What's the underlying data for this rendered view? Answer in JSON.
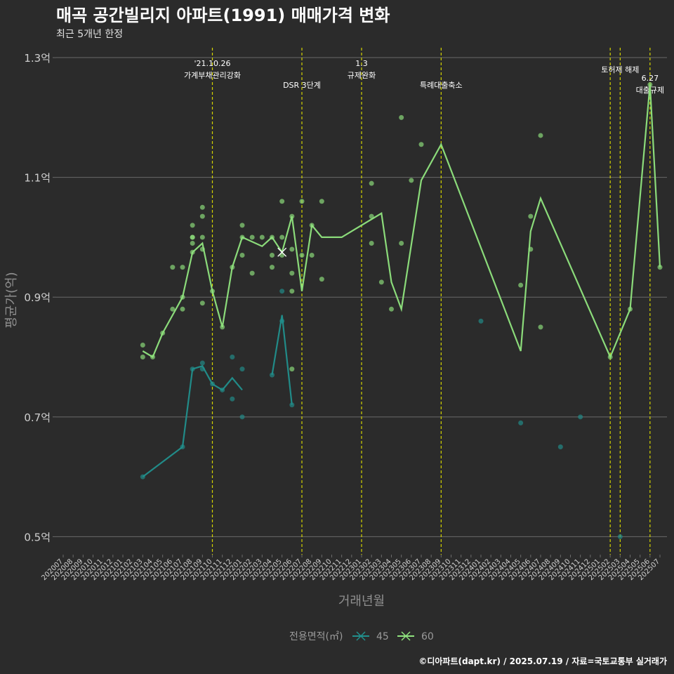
{
  "title": "매곡 공간빌리지 아파트(1991) 매매가격 변화",
  "subtitle": "최근 5개년 한정",
  "caption": "©디아파트(dapt.kr) / 2025.07.19 / 자료=국토교통부 실거래가",
  "colors": {
    "background": "#2b2b2b",
    "grid": "#6a6a6a",
    "axis_text": "#cfcfcf",
    "vline": "#d4d400",
    "s45": "#21908d",
    "s60": "#90e57e"
  },
  "chart_data": {
    "type": "line",
    "title": "매곡 공간빌리지 아파트(1991) 매매가격 변화",
    "xlabel": "거래년월",
    "ylabel": "평균가(억)",
    "ylim": [
      0.47,
      1.32
    ],
    "yticks": [
      0.5,
      0.7,
      0.9,
      1.1,
      1.3
    ],
    "ytick_labels": [
      "0.5억",
      "0.7억",
      "0.9억",
      "1.1억",
      "1.3억"
    ],
    "categories": [
      "202007",
      "202008",
      "202009",
      "202010",
      "202011",
      "202012",
      "202101",
      "202102",
      "202103",
      "202104",
      "202105",
      "202106",
      "202107",
      "202108",
      "202109",
      "202110",
      "202111",
      "202112",
      "202201",
      "202202",
      "202203",
      "202204",
      "202205",
      "202206",
      "202207",
      "202208",
      "202209",
      "202210",
      "202211",
      "202212",
      "202301",
      "202302",
      "202303",
      "202304",
      "202305",
      "202306",
      "202307",
      "202308",
      "202309",
      "202310",
      "202311",
      "202312",
      "202401",
      "202402",
      "202403",
      "202404",
      "202405",
      "202406",
      "202407",
      "202408",
      "202409",
      "202410",
      "202411",
      "202412",
      "202501",
      "202502",
      "202503",
      "202504",
      "202505",
      "202506",
      "202507"
    ],
    "legend": {
      "title": "전용면적(㎡)",
      "items": [
        "45",
        "60"
      ]
    },
    "series": [
      {
        "name": "45",
        "line": [
          [
            8,
            0.6
          ],
          [
            12,
            0.65
          ],
          [
            13,
            0.78
          ],
          [
            14,
            0.785
          ],
          [
            15,
            0.755
          ],
          [
            16,
            0.745
          ],
          [
            17,
            0.765
          ],
          [
            18,
            0.745
          ],
          [
            null,
            null
          ],
          [
            21,
            0.77
          ],
          [
            22,
            0.87
          ],
          [
            23,
            0.72
          ]
        ],
        "points": [
          [
            8,
            0.6
          ],
          [
            12,
            0.65
          ],
          [
            13,
            0.78
          ],
          [
            14,
            0.79
          ],
          [
            14,
            0.78
          ],
          [
            15,
            0.755
          ],
          [
            16,
            0.745
          ],
          [
            17,
            0.8
          ],
          [
            17,
            0.73
          ],
          [
            18,
            0.78
          ],
          [
            18,
            0.7
          ],
          [
            21,
            0.77
          ],
          [
            22,
            0.91
          ],
          [
            22,
            0.86
          ],
          [
            23,
            0.72
          ],
          [
            42,
            0.86
          ],
          [
            46,
            0.69
          ],
          [
            50,
            0.65
          ],
          [
            52,
            0.7
          ],
          [
            56,
            0.5
          ]
        ]
      },
      {
        "name": "60",
        "line": [
          [
            8,
            0.81
          ],
          [
            9,
            0.8
          ],
          [
            10,
            0.84
          ],
          [
            12,
            0.9
          ],
          [
            13,
            0.975
          ],
          [
            14,
            0.99
          ],
          [
            15,
            0.91
          ],
          [
            16,
            0.85
          ],
          [
            17,
            0.95
          ],
          [
            18,
            1.0
          ],
          [
            20,
            0.985
          ],
          [
            21,
            1.0
          ],
          [
            22,
            0.975
          ],
          [
            23,
            1.035
          ],
          [
            24,
            0.91
          ],
          [
            25,
            1.02
          ],
          [
            26,
            1.0
          ],
          [
            28,
            1.0
          ],
          [
            32,
            1.04
          ],
          [
            33,
            0.925
          ],
          [
            34,
            0.88
          ],
          [
            36,
            1.095
          ],
          [
            38,
            1.155
          ],
          [
            46,
            0.81
          ],
          [
            47,
            1.01
          ],
          [
            48,
            1.065
          ],
          [
            55,
            0.8
          ],
          [
            57,
            0.88
          ],
          [
            59,
            1.255
          ],
          [
            60,
            0.95
          ]
        ],
        "points": [
          [
            8,
            0.82
          ],
          [
            8,
            0.8
          ],
          [
            9,
            0.8
          ],
          [
            10,
            0.84
          ],
          [
            11,
            0.95
          ],
          [
            11,
            0.88
          ],
          [
            12,
            0.88
          ],
          [
            12,
            0.95
          ],
          [
            12,
            0.9
          ],
          [
            13,
            1.0
          ],
          [
            13,
            0.99
          ],
          [
            13,
            0.975
          ],
          [
            13,
            1.02
          ],
          [
            13,
            1.0
          ],
          [
            14,
            1.05
          ],
          [
            14,
            1.035
          ],
          [
            14,
            1.0
          ],
          [
            14,
            0.98
          ],
          [
            14,
            0.89
          ],
          [
            15,
            0.91
          ],
          [
            16,
            0.85
          ],
          [
            17,
            0.95
          ],
          [
            18,
            1.02
          ],
          [
            18,
            1.0
          ],
          [
            18,
            0.97
          ],
          [
            19,
            0.94
          ],
          [
            19,
            1.0
          ],
          [
            20,
            1.0
          ],
          [
            21,
            0.97
          ],
          [
            21,
            1.0
          ],
          [
            21,
            0.95
          ],
          [
            22,
            1.06
          ],
          [
            22,
            1.0
          ],
          [
            22,
            0.97
          ],
          [
            23,
            1.035
          ],
          [
            23,
            0.98
          ],
          [
            23,
            0.94
          ],
          [
            23,
            0.78
          ],
          [
            23,
            0.91
          ],
          [
            24,
            1.06
          ],
          [
            24,
            0.97
          ],
          [
            25,
            1.02
          ],
          [
            25,
            0.97
          ],
          [
            26,
            0.93
          ],
          [
            26,
            1.06
          ],
          [
            31,
            1.09
          ],
          [
            31,
            1.035
          ],
          [
            31,
            0.99
          ],
          [
            32,
            0.925
          ],
          [
            33,
            0.88
          ],
          [
            34,
            1.2
          ],
          [
            34,
            0.99
          ],
          [
            35,
            1.095
          ],
          [
            36,
            1.155
          ],
          [
            46,
            0.92
          ],
          [
            47,
            1.035
          ],
          [
            47,
            0.98
          ],
          [
            48,
            1.17
          ],
          [
            48,
            0.85
          ],
          [
            55,
            0.8
          ],
          [
            57,
            0.88
          ],
          [
            59,
            1.255
          ],
          [
            60,
            0.95
          ]
        ]
      }
    ],
    "x_marker": {
      "series": "60",
      "x": 22,
      "y": 0.975
    },
    "events": [
      {
        "x": 15,
        "lines": [
          "'21.10.26",
          "가계부채관리강화"
        ],
        "pos": "high"
      },
      {
        "x": 24,
        "lines": [
          "DSR 3단계"
        ],
        "pos": "low"
      },
      {
        "x": 30,
        "lines": [
          "1.3",
          "규제완화"
        ],
        "pos": "high"
      },
      {
        "x": 38,
        "lines": [
          "특례대출축소"
        ],
        "pos": "low"
      },
      {
        "x": 55,
        "lines": [],
        "pos": "none"
      },
      {
        "x": 56,
        "lines": [
          "토허제 해제"
        ],
        "pos": "mid"
      },
      {
        "x": 59,
        "lines": [
          "6.27",
          "대출규제"
        ],
        "pos": "low"
      }
    ]
  }
}
